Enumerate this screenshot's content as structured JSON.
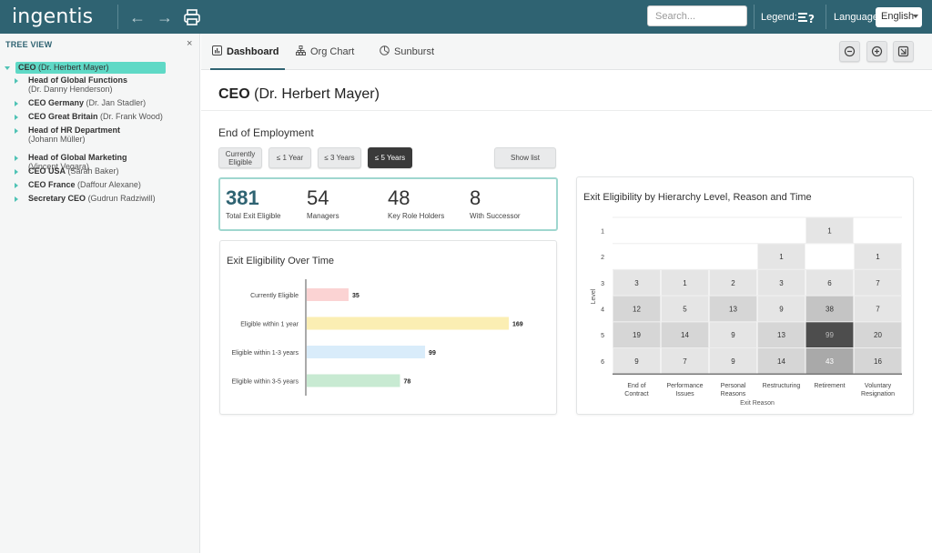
{
  "app": {
    "logo": "ingentis"
  },
  "toolbar": {
    "search_placeholder": "Search...",
    "legend_label": "Legend:",
    "language_label": "Language:",
    "language_value": "English"
  },
  "tree": {
    "title": "TREE VIEW",
    "close": "×",
    "root": {
      "bold": "CEO",
      "sub": "(Dr. Herbert Mayer)"
    },
    "items": [
      {
        "bold": "Head of Global Functions",
        "sub": "(Dr. Danny Henderson)",
        "two_line": true
      },
      {
        "bold": "CEO Germany",
        "sub": "(Dr. Jan Stadler)",
        "two_line": false
      },
      {
        "bold": "CEO Great Britain",
        "sub": "(Dr. Frank Wood)",
        "two_line": false
      },
      {
        "bold": "Head of HR Department",
        "sub": "(Johann Müller)",
        "two_line": true
      },
      {
        "bold": "Head of Global Marketing",
        "sub": "(Vincent Vegara)",
        "two_line": true
      },
      {
        "bold": "CEO USA",
        "sub": "(Sarah Baker)",
        "two_line": false
      },
      {
        "bold": "CEO France",
        "sub": "(Daffour Alexane)",
        "two_line": false
      },
      {
        "bold": "Secretary CEO",
        "sub": "(Gudrun Radziwill)",
        "two_line": false
      }
    ]
  },
  "tabs": [
    {
      "label": "Dashboard",
      "icon": "dashboard-icon",
      "active": true
    },
    {
      "label": "Org Chart",
      "icon": "org-chart-icon",
      "active": false
    },
    {
      "label": "Sunburst",
      "icon": "sunburst-icon",
      "active": false
    }
  ],
  "page": {
    "title_bold": "CEO",
    "title_rest": "(Dr. Herbert Mayer)",
    "section": "End of Employment"
  },
  "filters": [
    {
      "line1": "Currently",
      "line2": "Eligible",
      "active": false
    },
    {
      "line1": "≤ 1 Year",
      "line2": "",
      "active": false
    },
    {
      "line1": "≤ 3 Years",
      "line2": "",
      "active": false
    },
    {
      "line1": "≤ 5 Years",
      "line2": "",
      "active": true
    }
  ],
  "show_list": "Show list",
  "kpis": [
    {
      "value": "381",
      "label": "Total Exit Eligible"
    },
    {
      "value": "54",
      "label": "Managers"
    },
    {
      "value": "48",
      "label": "Key Role Holders"
    },
    {
      "value": "8",
      "label": "With Successor"
    }
  ],
  "colors": {
    "accent": "#2f6372",
    "highlight": "#5fd9c6"
  },
  "chart_data": [
    {
      "type": "bar",
      "orientation": "horizontal",
      "title": "Exit Eligibility Over Time",
      "categories": [
        "Currently Eligible",
        "Eligible within 1 year",
        "Eligible within 1-3 years",
        "Eligible within 3-5 years"
      ],
      "values": [
        35,
        169,
        99,
        78
      ],
      "colors": [
        "#fbd3d3",
        "#fbeeb3",
        "#d9ecfa",
        "#c8ead2"
      ],
      "xlim": [
        0,
        169
      ]
    },
    {
      "type": "heatmap",
      "title": "Exit Eligibility by Hierarchy Level, Reason and Time",
      "xlabel": "Exit Reason",
      "ylabel": "Level",
      "x": [
        "End of Contract",
        "Performance Issues",
        "Personal Reasons",
        "Restructuring",
        "Retirement",
        "Voluntary Resignation"
      ],
      "y": [
        "1",
        "2",
        "3",
        "4",
        "5",
        "6"
      ],
      "values": [
        [
          null,
          null,
          null,
          null,
          1,
          null
        ],
        [
          null,
          null,
          null,
          1,
          null,
          1
        ],
        [
          3,
          1,
          2,
          3,
          6,
          7
        ],
        [
          12,
          5,
          13,
          9,
          38,
          7
        ],
        [
          19,
          14,
          9,
          13,
          99,
          20
        ],
        [
          9,
          7,
          9,
          14,
          43,
          16
        ]
      ]
    }
  ]
}
